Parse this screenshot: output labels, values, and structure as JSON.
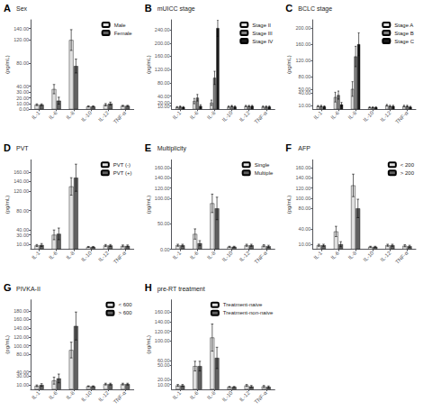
{
  "chart_data": [
    {
      "type": "bar",
      "title": "Sex",
      "annotations": [
        "A"
      ],
      "ylabel": "(pg/mL)",
      "categories": [
        "IL-1",
        "IL-6",
        "IL-8",
        "IL-10",
        "IL-12",
        "TNF-α"
      ],
      "series": [
        {
          "name": "Male",
          "color": "#e0e0e0",
          "values": [
            8,
            35,
            120,
            5,
            8,
            6
          ],
          "errors": [
            1.5,
            8,
            18,
            1,
            2,
            1
          ]
        },
        {
          "name": "Female",
          "color": "#606060",
          "values": [
            8,
            15,
            75,
            5,
            10,
            6
          ],
          "errors": [
            1.5,
            6,
            12,
            1,
            2.5,
            1
          ]
        }
      ],
      "ylim": [
        0,
        155
      ],
      "yticks": [
        {
          "value": 0,
          "label": "0.00"
        },
        {
          "value": 10,
          "label": "10.00"
        },
        {
          "value": 20,
          "label": "20.00"
        },
        {
          "value": 30,
          "label": "30.00"
        },
        {
          "value": 40,
          "label": "40.00"
        },
        {
          "value": 80,
          "label": "80.00"
        },
        {
          "value": 120,
          "label": "120.00"
        },
        {
          "value": 140,
          "label": "140.00"
        }
      ],
      "legend": "upper right",
      "grid": false
    },
    {
      "type": "bar",
      "title": "mUICC stage",
      "annotations": [
        "B"
      ],
      "ylabel": "(pg/mL)",
      "categories": [
        "IL-1",
        "IL-6",
        "IL-8",
        "IL-10",
        "IL-12",
        "TNF-α"
      ],
      "series": [
        {
          "name": "Stage II",
          "color": "#e0e0e0",
          "values": [
            7,
            25,
            20,
            8,
            10,
            8
          ],
          "errors": [
            1.5,
            8,
            8,
            2,
            2,
            2
          ]
        },
        {
          "name": "Stage III",
          "color": "#808080",
          "values": [
            8,
            35,
            95,
            10,
            10,
            8
          ],
          "errors": [
            2,
            10,
            20,
            2,
            2,
            2
          ]
        },
        {
          "name": "Stage IV",
          "color": "#1a1a1a",
          "values": [
            7,
            10,
            245,
            8,
            10,
            8
          ],
          "errors": [
            1.5,
            4,
            25,
            2,
            2,
            2
          ]
        }
      ],
      "ylim": [
        0,
        270
      ],
      "yticks": [
        {
          "value": 0,
          "label": "0.00"
        },
        {
          "value": 10,
          "label": "10.00"
        },
        {
          "value": 20,
          "label": "20.00"
        },
        {
          "value": 40,
          "label": "40.00"
        },
        {
          "value": 80,
          "label": "80.00"
        },
        {
          "value": 120,
          "label": "120.00"
        },
        {
          "value": 160,
          "label": "160.00"
        },
        {
          "value": 200,
          "label": "200.00"
        },
        {
          "value": 240,
          "label": "240.00"
        }
      ],
      "legend": "upper right",
      "grid": false
    },
    {
      "type": "bar",
      "title": "BCLC stage",
      "annotations": [
        "C"
      ],
      "ylabel": "(pg/mL)",
      "categories": [
        "IL-1",
        "IL-6",
        "IL-8",
        "IL-10",
        "IL-12",
        "TNF-α"
      ],
      "series": [
        {
          "name": "Stage A",
          "color": "#e0e0e0",
          "values": [
            8,
            30,
            50,
            5,
            10,
            8
          ],
          "errors": [
            1.5,
            12,
            18,
            1,
            2,
            2
          ]
        },
        {
          "name": "Stage B",
          "color": "#808080",
          "values": [
            8,
            35,
            130,
            5,
            8,
            8
          ],
          "errors": [
            2,
            10,
            25,
            1,
            2,
            2
          ]
        },
        {
          "name": "Stage C",
          "color": "#1a1a1a",
          "values": [
            7,
            12,
            160,
            5,
            8,
            6
          ],
          "errors": [
            1.5,
            5,
            28,
            1,
            2,
            1.5
          ]
        }
      ],
      "ylim": [
        0,
        220
      ],
      "yticks": [
        {
          "value": 0,
          "label": "0.00"
        },
        {
          "value": 10,
          "label": "10.00"
        },
        {
          "value": 40,
          "label": "40.00"
        },
        {
          "value": 50,
          "label": "50.00"
        },
        {
          "value": 80,
          "label": "80.00"
        },
        {
          "value": 120,
          "label": "120.00"
        },
        {
          "value": 160,
          "label": "160.00"
        },
        {
          "value": 200,
          "label": "200.00"
        }
      ],
      "legend": "upper right",
      "grid": false
    },
    {
      "type": "bar",
      "title": "PVT",
      "annotations": [
        "D"
      ],
      "ylabel": "(pg/mL)",
      "categories": [
        "IL-1",
        "IL-6",
        "IL-8",
        "IL-10",
        "IL-12",
        "TNF-α"
      ],
      "series": [
        {
          "name": "PVT (-)",
          "color": "#e0e0e0",
          "values": [
            8,
            30,
            130,
            5,
            8,
            7
          ],
          "errors": [
            2,
            10,
            18,
            1,
            2,
            2
          ]
        },
        {
          "name": "PVT (+)",
          "color": "#606060",
          "values": [
            9,
            32,
            148,
            5,
            8,
            7
          ],
          "errors": [
            3,
            12,
            28,
            1,
            2,
            2
          ]
        }
      ],
      "ylim": [
        0,
        185
      ],
      "yticks": [
        {
          "value": 0,
          "label": "0.00"
        },
        {
          "value": 10,
          "label": "10.00"
        },
        {
          "value": 30,
          "label": "30.00"
        },
        {
          "value": 40,
          "label": "40.00"
        },
        {
          "value": 80,
          "label": "80.00"
        },
        {
          "value": 120,
          "label": "120.00"
        },
        {
          "value": 140,
          "label": "140.00"
        },
        {
          "value": 160,
          "label": "160.00"
        }
      ],
      "legend": "upper right",
      "grid": false
    },
    {
      "type": "bar",
      "title": "Multiplicity",
      "annotations": [
        "E"
      ],
      "ylabel": "(pg/mL)",
      "categories": [
        "IL-1",
        "IL-6",
        "IL-8",
        "IL-10",
        "IL-12",
        "TNF-α"
      ],
      "series": [
        {
          "name": "Single",
          "color": "#e0e0e0",
          "values": [
            8,
            30,
            90,
            5,
            8,
            7
          ],
          "errors": [
            2,
            10,
            18,
            1,
            2,
            2
          ]
        },
        {
          "name": "Multiple",
          "color": "#606060",
          "values": [
            8,
            12,
            80,
            5,
            8,
            6
          ],
          "errors": [
            2,
            5,
            22,
            1,
            2,
            2
          ]
        }
      ],
      "ylim": [
        0,
        175
      ],
      "yticks": [
        {
          "value": 0,
          "label": "0.00"
        },
        {
          "value": 50,
          "label": "50.00"
        },
        {
          "value": 100,
          "label": "100.00"
        },
        {
          "value": 120,
          "label": "120.00"
        },
        {
          "value": 140,
          "label": "140.00"
        },
        {
          "value": 160,
          "label": "160.00"
        }
      ],
      "legend": "upper right",
      "grid": false
    },
    {
      "type": "bar",
      "title": "AFP",
      "annotations": [
        "F"
      ],
      "ylabel": "(pg/mL)",
      "categories": [
        "IL-1",
        "IL-6",
        "IL-8",
        "IL-10",
        "IL-12",
        "TNF-α"
      ],
      "series": [
        {
          "name": "< 200",
          "color": "#e0e0e0",
          "values": [
            8,
            35,
            125,
            5,
            8,
            7
          ],
          "errors": [
            2,
            10,
            22,
            1,
            2,
            2
          ]
        },
        {
          "name": "> 200",
          "color": "#606060",
          "values": [
            8,
            10,
            80,
            5,
            8,
            6
          ],
          "errors": [
            2,
            5,
            18,
            1,
            2,
            2
          ]
        }
      ],
      "ylim": [
        0,
        175
      ],
      "yticks": [
        {
          "value": 0,
          "label": "0.00"
        },
        {
          "value": 10,
          "label": "10.00"
        },
        {
          "value": 40,
          "label": "40.00"
        },
        {
          "value": 80,
          "label": "80.00"
        },
        {
          "value": 100,
          "label": "100.00"
        },
        {
          "value": 120,
          "label": "120.00"
        },
        {
          "value": 140,
          "label": "140.00"
        },
        {
          "value": 160,
          "label": "160.00"
        }
      ],
      "legend": "upper right",
      "grid": false
    },
    {
      "type": "bar",
      "title": "PIVKA-II",
      "annotations": [
        "G"
      ],
      "ylabel": "(pg/mL)",
      "categories": [
        "IL-1",
        "IL-6",
        "IL-8",
        "IL-10",
        "IL-12",
        "TNF-α"
      ],
      "series": [
        {
          "name": "< 600",
          "color": "#e0e0e0",
          "values": [
            8,
            20,
            90,
            7,
            12,
            12
          ],
          "errors": [
            2,
            8,
            18,
            1,
            2,
            2
          ]
        },
        {
          "name": "> 600",
          "color": "#606060",
          "values": [
            10,
            25,
            145,
            7,
            12,
            12
          ],
          "errors": [
            3,
            10,
            32,
            1,
            2,
            2
          ]
        }
      ],
      "ylim": [
        0,
        205
      ],
      "yticks": [
        {
          "value": 0,
          "label": "0.00"
        },
        {
          "value": 10,
          "label": "10.00"
        },
        {
          "value": 30,
          "label": "30.00"
        },
        {
          "value": 40,
          "label": "40.00"
        },
        {
          "value": 80,
          "label": "80.00"
        },
        {
          "value": 100,
          "label": "100.00"
        },
        {
          "value": 120,
          "label": "120.00"
        },
        {
          "value": 140,
          "label": "140.00"
        },
        {
          "value": 160,
          "label": "160.00"
        },
        {
          "value": 180,
          "label": "180.00"
        }
      ],
      "legend": "upper right",
      "grid": false
    },
    {
      "type": "bar",
      "title": "pre-RT treatment",
      "annotations": [
        "H"
      ],
      "ylabel": "(pg/mL)",
      "categories": [
        "IL-1",
        "IL-6",
        "IL-8",
        "IL-10",
        "IL-12",
        "TNF-α"
      ],
      "series": [
        {
          "name": "Treatment-naive",
          "color": "#e0e0e0",
          "values": [
            8,
            48,
            107,
            5,
            8,
            6
          ],
          "errors": [
            2,
            10,
            28,
            1,
            2,
            2
          ]
        },
        {
          "name": "Treatment-non-naive",
          "color": "#606060",
          "values": [
            8,
            48,
            65,
            5,
            6,
            5
          ],
          "errors": [
            2,
            10,
            22,
            1,
            2,
            2
          ]
        }
      ],
      "ylim": [
        0,
        185
      ],
      "yticks": [
        {
          "value": 0,
          "label": "0.00"
        },
        {
          "value": 10,
          "label": "10.00"
        },
        {
          "value": 20,
          "label": "20.00"
        },
        {
          "value": 50,
          "label": "50.00"
        },
        {
          "value": 60,
          "label": "60.00"
        },
        {
          "value": 100,
          "label": "100.00"
        },
        {
          "value": 120,
          "label": "120.00"
        },
        {
          "value": 140,
          "label": "140.00"
        },
        {
          "value": 160,
          "label": "160.00"
        }
      ],
      "legend": "upper right",
      "grid": false
    }
  ]
}
